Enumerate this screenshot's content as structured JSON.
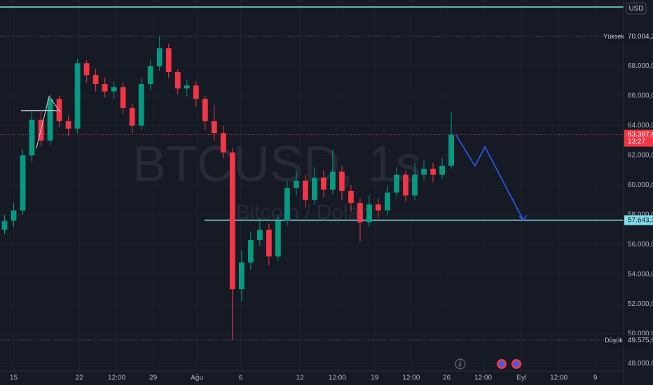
{
  "chart_data": {
    "type": "candlestick",
    "currency": "USD",
    "watermark": {
      "symbol": "BTCUSD, 1s",
      "description": "Bitcoin / Dolar"
    },
    "x": [
      -1,
      0,
      1,
      2,
      3,
      4,
      5,
      6,
      7,
      8,
      9,
      10,
      11,
      12,
      13,
      14,
      15,
      16,
      17,
      18,
      19,
      20,
      21,
      22,
      23,
      24,
      25,
      26,
      27,
      28,
      29,
      30,
      31,
      32,
      33,
      34,
      35,
      36,
      37,
      38,
      39,
      40,
      41,
      42,
      43,
      44,
      45,
      46,
      47,
      48
    ],
    "open": [
      57000,
      57600,
      58300,
      62000,
      64400,
      63000,
      65800,
      64300,
      63800,
      68200,
      67400,
      66800,
      66300,
      66600,
      65200,
      64000,
      66800,
      68000,
      69200,
      67600,
      66500,
      66700,
      65800,
      64300,
      63500,
      62200,
      53000,
      54800,
      56300,
      57000,
      55200,
      57600,
      59800,
      60300,
      59000,
      60500,
      59700,
      60900,
      59600,
      58800,
      57500,
      58700,
      58300,
      59500,
      60700,
      59300,
      60700,
      61100,
      60700,
      61300
    ],
    "high": [
      58000,
      58800,
      62400,
      65000,
      64900,
      66100,
      66000,
      64700,
      68500,
      68400,
      67800,
      67200,
      67000,
      66900,
      65500,
      67200,
      68400,
      70004.2,
      69500,
      67800,
      67100,
      67000,
      66000,
      65400,
      64000,
      62500,
      55600,
      56900,
      57800,
      57400,
      58000,
      60300,
      61000,
      60700,
      61200,
      61000,
      62400,
      61300,
      60000,
      59100,
      59300,
      59100,
      60000,
      61200,
      61000,
      61500,
      61700,
      61500,
      61800,
      64900
    ],
    "low": [
      56700,
      57200,
      58000,
      61600,
      62600,
      62700,
      63900,
      63300,
      63500,
      66900,
      66300,
      65900,
      65800,
      64800,
      63500,
      63700,
      66400,
      67700,
      67200,
      66100,
      66000,
      65300,
      63700,
      63000,
      61800,
      49575.6,
      52200,
      54300,
      55900,
      54600,
      54900,
      57300,
      59300,
      58500,
      58700,
      59200,
      59400,
      59000,
      58200,
      56200,
      57200,
      57800,
      58000,
      59200,
      58900,
      59000,
      60300,
      60200,
      60400,
      61100
    ],
    "close": [
      57600,
      58300,
      62000,
      64400,
      63000,
      65800,
      64300,
      63800,
      68200,
      67400,
      66800,
      66300,
      66600,
      65200,
      64000,
      66800,
      68000,
      69200,
      67600,
      66500,
      66700,
      65800,
      64300,
      63500,
      62200,
      53000,
      54800,
      56300,
      57000,
      55200,
      57600,
      59800,
      60300,
      59000,
      60500,
      59700,
      60900,
      59600,
      58800,
      57500,
      58700,
      58300,
      59500,
      60700,
      59300,
      60700,
      61100,
      60700,
      61300,
      63387.6
    ],
    "up_color": "#089981",
    "down_color": "#f23645",
    "xlim": [
      -1.5,
      66.9
    ],
    "xticks": [
      {
        "value": 0,
        "label": "15"
      },
      {
        "value": 7.2,
        "label": "22"
      },
      {
        "value": 11.3,
        "label": "12:00"
      },
      {
        "value": 15.3,
        "label": "29"
      },
      {
        "value": 20.1,
        "label": "Ağu"
      },
      {
        "value": 24.9,
        "label": "6"
      },
      {
        "value": 31.4,
        "label": "12"
      },
      {
        "value": 35.5,
        "label": "12:00"
      },
      {
        "value": 39.6,
        "label": "19"
      },
      {
        "value": 43.6,
        "label": "12:00"
      },
      {
        "value": 47.5,
        "label": "26"
      },
      {
        "value": 51.5,
        "label": "12:00"
      },
      {
        "value": 55.7,
        "label": "Eyl"
      },
      {
        "value": 59.8,
        "label": "12:00"
      },
      {
        "value": 63.8,
        "label": "9"
      }
    ],
    "ylim": [
      47500,
      72450
    ],
    "yticks": [
      {
        "value": 48000,
        "label": "48.000,0"
      },
      {
        "value": 50000,
        "label": "50.000,0"
      },
      {
        "value": 52000,
        "label": "52.000,0"
      },
      {
        "value": 54000,
        "label": "54.000,0"
      },
      {
        "value": 56000,
        "label": "56.000,0"
      },
      {
        "value": 58000,
        "label": "58.000,0"
      },
      {
        "value": 60000,
        "label": "60.000,0"
      },
      {
        "value": 62000,
        "label": "62.000,0"
      },
      {
        "value": 64000,
        "label": "64.000,0"
      },
      {
        "value": 66000,
        "label": "66.000,0"
      },
      {
        "value": 68000,
        "label": "68.000,0"
      }
    ],
    "grid": true,
    "high_level": {
      "name": "Yüksek",
      "value": 70004.2,
      "label": "70.004,2"
    },
    "low_level": {
      "name": "Düşük",
      "value": 49575.6,
      "label": "49.575,6"
    },
    "last_price": {
      "value": 63387.6,
      "label": "63.387,6",
      "countdown": "13:27",
      "color": "#f23645"
    },
    "hlines": [
      {
        "value": 71980,
        "color": "#80deea"
      },
      {
        "value": 57643.3,
        "label": "57.643,3",
        "color": "#80deea"
      }
    ],
    "projection": {
      "color": "#2962ff",
      "x": [
        48.5,
        50.6,
        51.7,
        55.9
      ],
      "values": [
        63390,
        61300,
        62570,
        57643.3
      ]
    }
  }
}
